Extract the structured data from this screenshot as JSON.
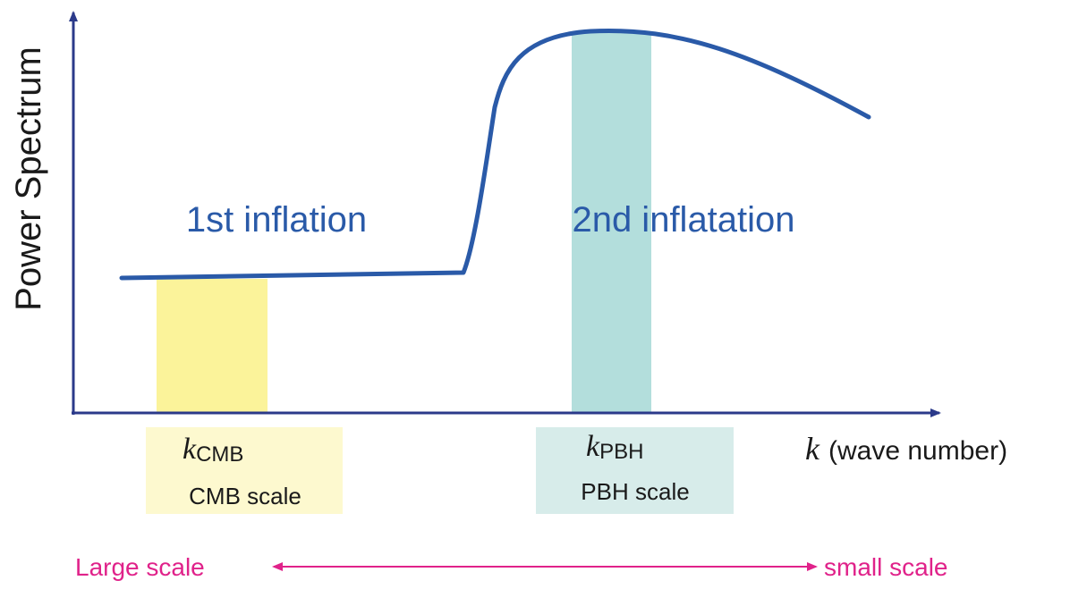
{
  "y_axis_label": "Power Spectrum",
  "x_axis_label": {
    "symbol": "k",
    "text": "(wave number)"
  },
  "regions": [
    {
      "text": "1st inflation"
    },
    {
      "text": "2nd inflatation"
    }
  ],
  "bands": [
    {
      "symbol": "k",
      "subscript": "CMB",
      "caption": "CMB scale"
    },
    {
      "symbol": "k",
      "subscript": "PBH",
      "caption": "PBH scale"
    }
  ],
  "scale_arrow": {
    "left_label": "Large scale",
    "right_label": "small scale"
  },
  "colors": {
    "axis": "#2b3a8a",
    "curve": "#2a5aa8",
    "region_text": "#2a5aa8",
    "cmb_band": "#fbf39a",
    "cmb_box": "#fdf9cf",
    "pbh_band": "#b3dedc",
    "pbh_box": "#d7ecea",
    "scale_arrow": "#e0228a",
    "text": "#1a1a1a"
  }
}
